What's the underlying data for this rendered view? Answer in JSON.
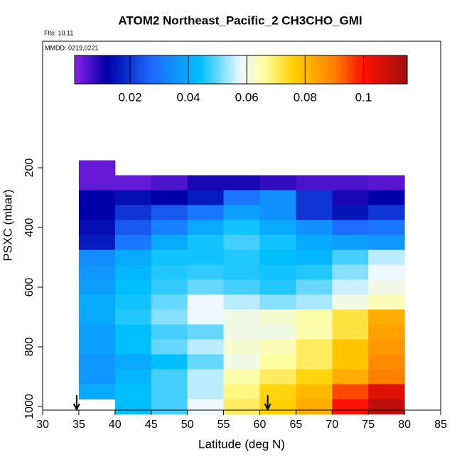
{
  "chart_data": {
    "type": "heatmap",
    "title": "ATOM2 Northeast_Pacific_2 CH3CHO_GMI",
    "flights_label": "Flts: 10,11",
    "dates_label": "MMDD: 0219,0221",
    "xlabel": "Latitude (deg N)",
    "ylabel": "PSXC (mbar)",
    "xlim": [
      30,
      85
    ],
    "xticks": [
      30,
      35,
      40,
      45,
      50,
      55,
      60,
      65,
      70,
      75,
      80,
      85
    ],
    "ylim": [
      -224,
      1012
    ],
    "y_reversed": true,
    "yticks": [
      200,
      400,
      600,
      800,
      1000
    ],
    "clim": [
      0.001,
      0.115
    ],
    "cticks": [
      0.02,
      0.04,
      0.06,
      0.08,
      0.1
    ],
    "colorscale": [
      [
        0.001,
        "#8a22e8"
      ],
      [
        0.012,
        "#0000a8"
      ],
      [
        0.028,
        "#1e6cff"
      ],
      [
        0.044,
        "#00bfff"
      ],
      [
        0.058,
        "#eef8ff"
      ],
      [
        0.066,
        "#ffffa0"
      ],
      [
        0.076,
        "#ffd000"
      ],
      [
        0.09,
        "#ff8000"
      ],
      [
        0.1,
        "#ff1000"
      ],
      [
        0.115,
        "#9e1010"
      ]
    ],
    "markers_x": [
      34.7,
      61.1
    ],
    "x_edges": [
      35,
      40,
      45,
      50,
      55,
      60,
      65,
      70,
      75,
      80
    ],
    "y_edges": [
      175,
      225,
      275,
      325,
      375,
      425,
      475,
      525,
      575,
      625,
      675,
      725,
      775,
      825,
      875,
      925,
      975,
      1025
    ],
    "z": [
      [
        0.004,
        null,
        null,
        null,
        null,
        null,
        null,
        null,
        null
      ],
      [
        0.004,
        0.004,
        0.006,
        0.01,
        0.01,
        0.008,
        0.006,
        0.006,
        0.005
      ],
      [
        0.012,
        0.014,
        0.012,
        0.016,
        0.03,
        0.035,
        0.02,
        0.01,
        0.012
      ],
      [
        0.012,
        0.02,
        0.025,
        0.03,
        0.038,
        0.035,
        0.02,
        0.015,
        0.02
      ],
      [
        0.014,
        0.025,
        0.032,
        0.04,
        0.045,
        0.04,
        0.035,
        0.028,
        0.03
      ],
      [
        0.016,
        0.03,
        0.04,
        0.045,
        0.048,
        0.045,
        0.04,
        0.038,
        0.036
      ],
      [
        0.034,
        0.04,
        0.045,
        0.045,
        0.046,
        0.044,
        0.042,
        0.048,
        0.055
      ],
      [
        0.036,
        0.042,
        0.046,
        0.047,
        0.046,
        0.045,
        0.046,
        0.052,
        0.058
      ],
      [
        0.038,
        0.044,
        0.047,
        0.05,
        0.048,
        0.046,
        0.05,
        0.056,
        0.06
      ],
      [
        0.04,
        0.045,
        0.05,
        0.058,
        0.055,
        0.052,
        0.054,
        0.06,
        0.064
      ],
      [
        0.04,
        0.046,
        0.052,
        0.058,
        0.06,
        0.062,
        0.065,
        0.072,
        0.082
      ],
      [
        0.038,
        0.044,
        0.048,
        0.05,
        0.06,
        0.06,
        0.065,
        0.072,
        0.084
      ],
      [
        0.038,
        0.044,
        0.05,
        0.055,
        0.062,
        0.064,
        0.07,
        0.078,
        0.086
      ],
      [
        0.036,
        0.04,
        0.044,
        0.05,
        0.06,
        0.066,
        0.07,
        0.078,
        0.088
      ],
      [
        0.036,
        0.042,
        0.048,
        0.055,
        0.065,
        0.07,
        0.075,
        0.082,
        0.09
      ],
      [
        0.04,
        0.044,
        0.048,
        0.055,
        0.068,
        0.075,
        0.08,
        0.095,
        0.105
      ],
      [
        null,
        0.044,
        0.048,
        0.058,
        0.07,
        0.076,
        0.082,
        0.1,
        0.11
      ]
    ]
  }
}
